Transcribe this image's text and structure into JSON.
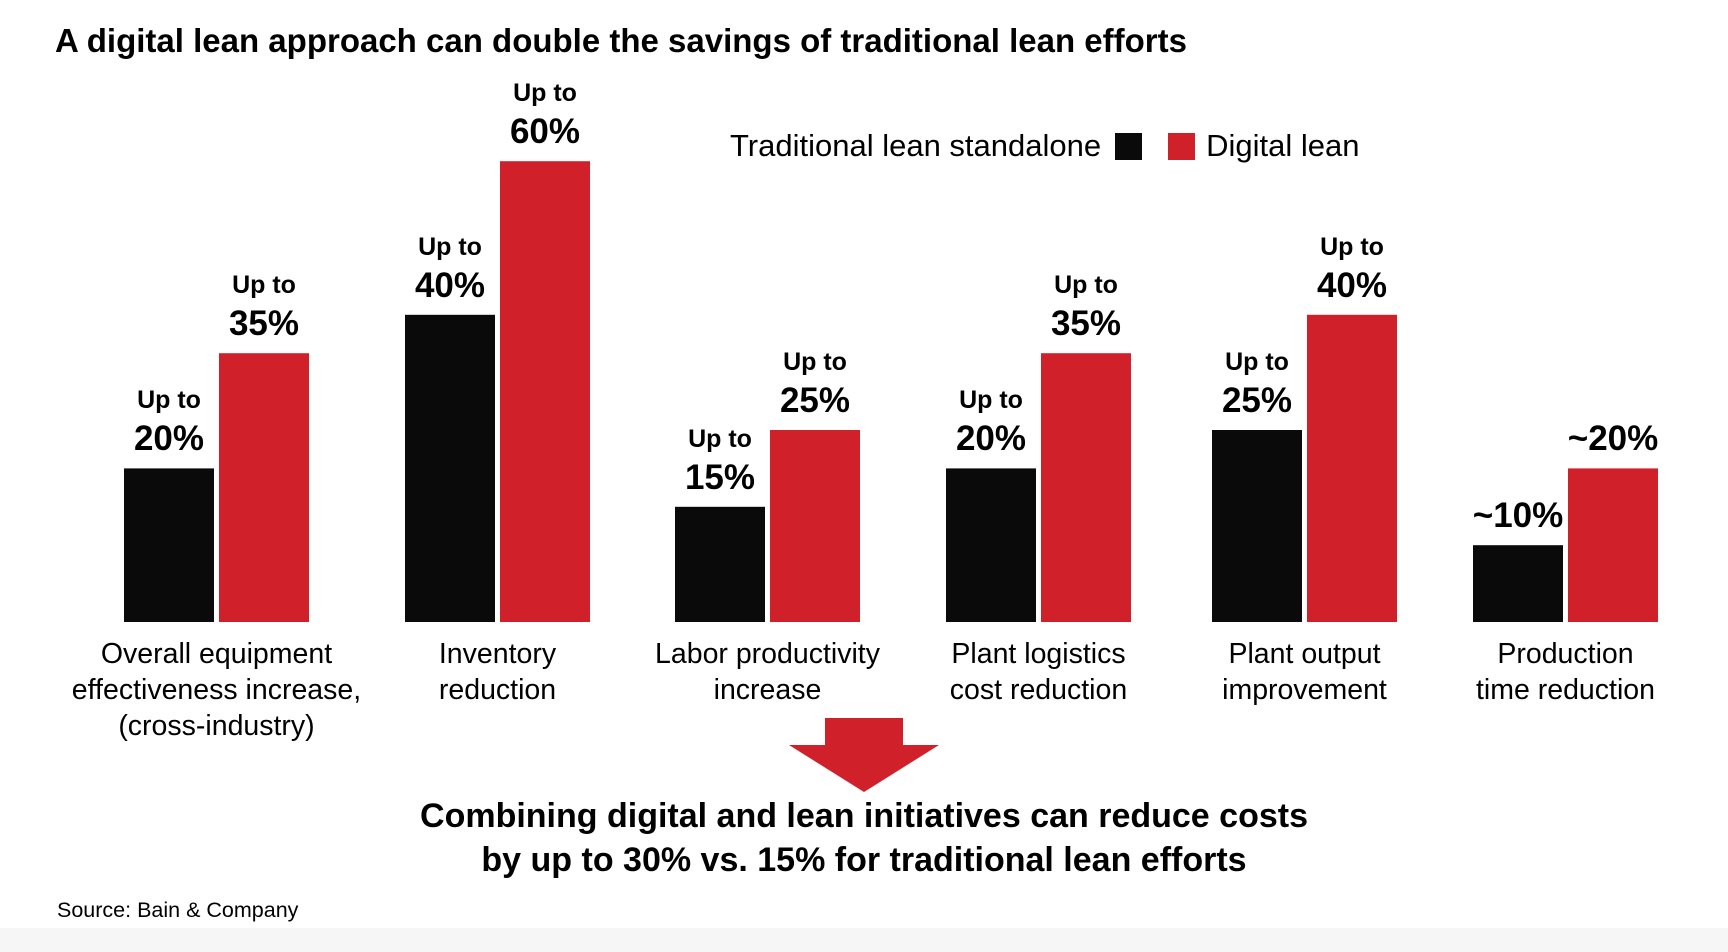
{
  "title": "A digital lean approach can double the savings of traditional lean efforts",
  "legend": {
    "traditional_label": "Traditional lean standalone",
    "digital_label": "Digital lean"
  },
  "colors": {
    "traditional": "#0a0a0a",
    "digital": "#d0202a",
    "arrow": "#d0202a"
  },
  "chart_data": {
    "type": "bar",
    "title": "A digital lean approach can double the savings of traditional lean efforts",
    "xlabel": "",
    "ylabel": "",
    "ylim": [
      0,
      60
    ],
    "legend_position": "top-right",
    "grid": false,
    "categories": [
      [
        "Overall equipment",
        "effectiveness increase,",
        "(cross-industry)"
      ],
      [
        "Inventory",
        "reduction"
      ],
      [
        "Labor productivity",
        "increase"
      ],
      [
        "Plant logistics",
        "cost reduction"
      ],
      [
        "Plant output",
        "improvement"
      ],
      [
        "Production",
        "time reduction"
      ]
    ],
    "series": [
      {
        "name": "Traditional lean standalone",
        "values": [
          20,
          40,
          15,
          20,
          25,
          10
        ],
        "labels": [
          [
            "Up to",
            "20%"
          ],
          [
            "Up to",
            "40%"
          ],
          [
            "Up to",
            "15%"
          ],
          [
            "Up to",
            "20%"
          ],
          [
            "Up to",
            "25%"
          ],
          [
            "",
            "~10%"
          ]
        ]
      },
      {
        "name": "Digital lean",
        "values": [
          35,
          60,
          25,
          35,
          40,
          20
        ],
        "labels": [
          [
            "Up to",
            "35%"
          ],
          [
            "Up to",
            "60%"
          ],
          [
            "Up to",
            "25%"
          ],
          [
            "Up to",
            "35%"
          ],
          [
            "Up to",
            "40%"
          ],
          [
            "",
            "~20%"
          ]
        ]
      }
    ]
  },
  "conclusion": {
    "line1": "Combining digital and lean initiatives can reduce costs",
    "line2": "by up to 30% vs. 15% for traditional lean efforts"
  },
  "source": "Source: Bain & Company"
}
